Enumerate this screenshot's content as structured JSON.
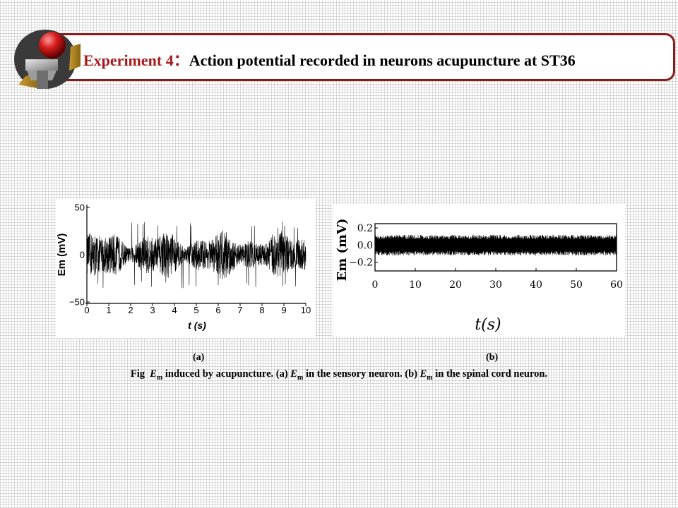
{
  "title": {
    "prefix": "Experiment 4：",
    "main": "Action potential recorded in neurons acupuncture at ST36"
  },
  "colors": {
    "accent": "#8b1a1a",
    "title_red": "#a8191d"
  },
  "logo_icon": "abstract-sphere-logo-icon",
  "caption": {
    "fig": "Fig",
    "var": "E",
    "sub": "m",
    "p1": "induced by acupuncture. (a)",
    "p2": "in the sensory neuron. (b)",
    "p3": "in the spinal cord neuron."
  },
  "chart_data": [
    {
      "type": "line",
      "panel_label": "(a)",
      "xlabel": "t (s)",
      "ylabel": "Em (mV)",
      "xlim": [
        0,
        10
      ],
      "ylim": [
        -50,
        50
      ],
      "xticks": [
        "0",
        "1",
        "2",
        "3",
        "4",
        "5",
        "6",
        "7",
        "8",
        "9",
        "10"
      ],
      "yticks": [
        "50",
        "0",
        "−50"
      ],
      "signal": "dense noisy membrane potential, typically within ±25 mV, peaks near ±35 mV"
    },
    {
      "type": "line",
      "panel_label": "(b)",
      "xlabel": "t(s)",
      "ylabel": "Em (mV)",
      "xlim": [
        0,
        60
      ],
      "ylim": [
        -0.3,
        0.25
      ],
      "xticks": [
        "0",
        "10",
        "20",
        "30",
        "40",
        "50",
        "60"
      ],
      "yticks": [
        "0.2",
        "0.0",
        "−0.2"
      ],
      "signal": "dense regular oscillation between about −0.12 and 0.12 mV"
    }
  ]
}
